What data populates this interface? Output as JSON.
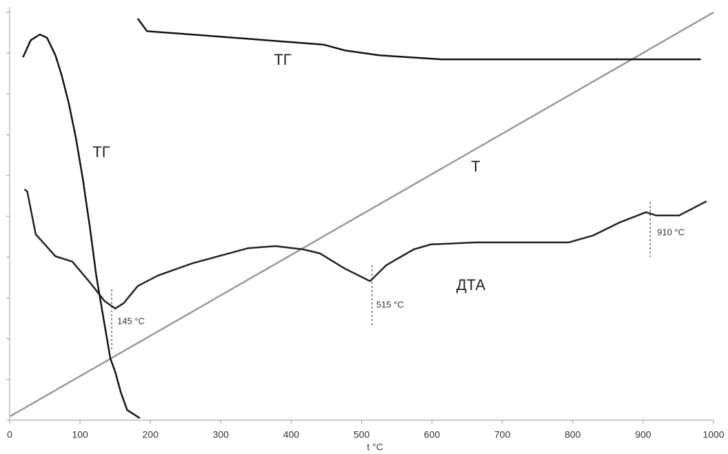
{
  "chart_data": {
    "type": "line",
    "x_label": "t °C",
    "xlim": [
      0,
      1000
    ],
    "xticks": [
      0,
      100,
      200,
      300,
      400,
      500,
      600,
      700,
      800,
      900,
      1000
    ],
    "ylim": [
      0,
      10
    ],
    "yticks": [
      0,
      1,
      2,
      3,
      4,
      5,
      6,
      7,
      8,
      9,
      10
    ],
    "show_ytick_labels": false,
    "grid": false,
    "series": [
      {
        "name": "Т",
        "color": "#999999",
        "x": [
          1,
          1000
        ],
        "values": [
          0.1,
          10
        ]
      },
      {
        "name": "ТГ",
        "color": "#111111",
        "x": [
          19,
          30,
          43,
          53,
          65,
          74,
          84,
          94,
          104,
          114,
          123,
          133,
          143,
          150,
          158,
          167,
          185
        ],
        "values": [
          8.9,
          9.32,
          9.46,
          9.38,
          8.95,
          8.45,
          7.77,
          6.93,
          5.91,
          4.73,
          3.55,
          2.53,
          1.52,
          1.18,
          0.68,
          0.25,
          0.05
        ]
      },
      {
        "name": "ТГ",
        "color": "#111111",
        "x": [
          182,
          195,
          280,
          446,
          476,
          525,
          613,
          982
        ],
        "values": [
          9.85,
          9.54,
          9.43,
          9.21,
          9.07,
          8.95,
          8.85,
          8.85
        ]
      },
      {
        "name": "ДТА",
        "color": "#222222",
        "x": [
          21,
          25,
          37,
          65,
          89,
          114,
          135,
          150,
          162,
          182,
          211,
          260,
          339,
          378,
          417,
          441,
          476,
          512,
          535,
          574,
          598,
          662,
          794,
          829,
          868,
          904,
          919,
          951,
          990
        ],
        "values": [
          5.66,
          5.61,
          4.56,
          4.02,
          3.89,
          3.38,
          2.92,
          2.74,
          2.87,
          3.29,
          3.55,
          3.85,
          4.22,
          4.27,
          4.19,
          4.09,
          3.72,
          3.41,
          3.8,
          4.19,
          4.31,
          4.36,
          4.36,
          4.53,
          4.86,
          5.1,
          5.02,
          5.02,
          5.37
        ]
      }
    ],
    "markers": [
      {
        "x": 145,
        "label": "145 °C"
      },
      {
        "x": 515,
        "label": "515 °C"
      },
      {
        "x": 910,
        "label": "910 °C"
      }
    ]
  }
}
